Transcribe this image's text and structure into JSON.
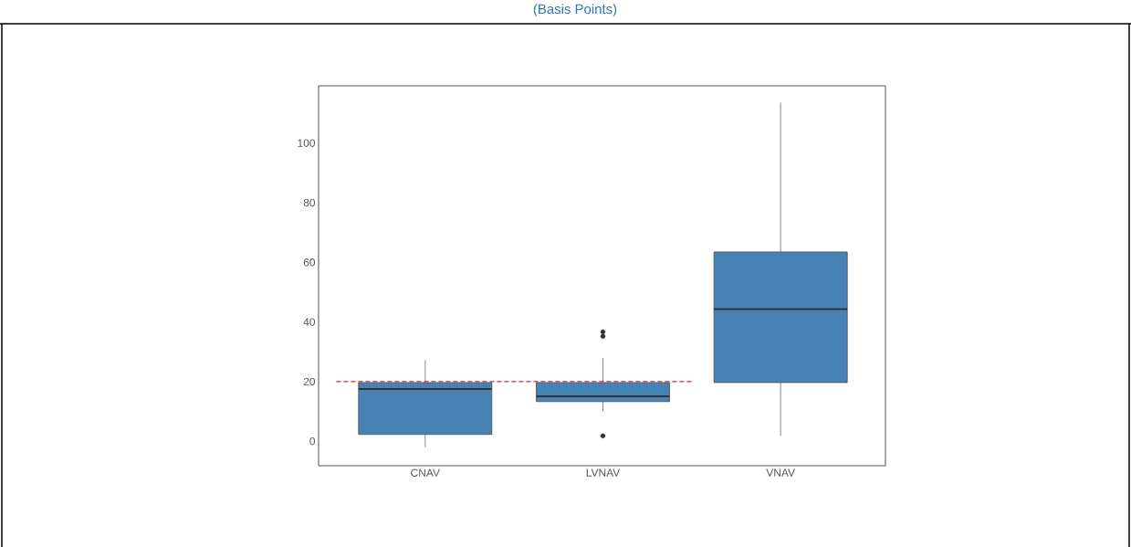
{
  "chart_data": {
    "type": "box",
    "title": "(Basis Points)",
    "categories": [
      "CNAV",
      "LVNAV",
      "VNAV"
    ],
    "color": "#4682b4",
    "boxes": [
      {
        "low": -2,
        "q1": 2.3,
        "median": 17.5,
        "q3": 19.7,
        "high": 27.2
      },
      {
        "low": 9.9,
        "q1": 13.3,
        "median": 15.1,
        "q3": 19.7,
        "high": 27.8,
        "outliers": [
          36.7,
          35.2,
          1.8
        ]
      },
      {
        "low": 1.8,
        "q1": 19.7,
        "median": 44.3,
        "q3": 63.5,
        "high": 113.6
      }
    ],
    "ylim": [
      -8.2,
      119.2
    ],
    "yticks": [
      0,
      20,
      40,
      60,
      80,
      100
    ],
    "ref_lines": [
      {
        "axis": "y",
        "value": 20,
        "color": "#e0202a",
        "line_style": "dashed"
      }
    ],
    "grid": false
  }
}
